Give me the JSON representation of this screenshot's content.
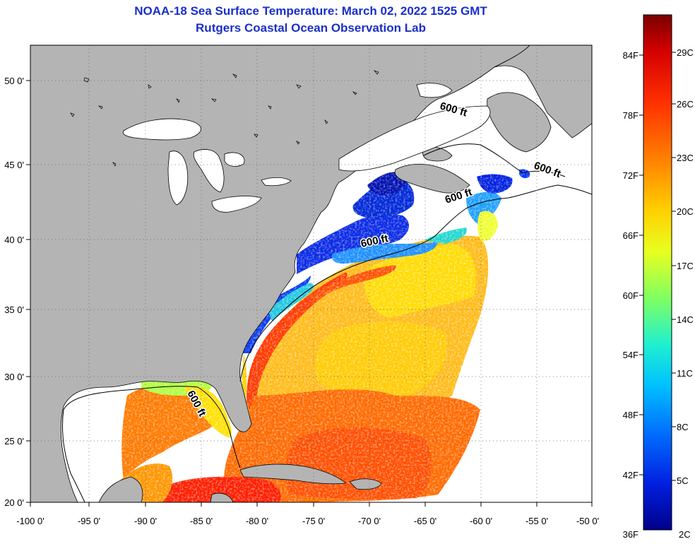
{
  "title": "NOAA-18 Sea Surface Temperature:  March 02, 2022 1525 GMT",
  "subtitle": "Rutgers Coastal Ocean Observation Lab",
  "x_ticks": [
    "-100 0'",
    "-95 0'",
    "-90 0'",
    "-85 0'",
    "-80 0'",
    "-75 0'",
    "-70 0'",
    "-65 0'",
    "-60 0'",
    "-55 0'",
    "-50 0'"
  ],
  "y_ticks": [
    "20 0'",
    "25 0'",
    "30 0'",
    "35 0'",
    "40 0'",
    "45 0'",
    "50 0'"
  ],
  "contour_labels": [
    "600 ft",
    "600 ft",
    "600 ft",
    "600 ft",
    "600 ft"
  ],
  "colorbar": {
    "f_labels": [
      "84F",
      "78F",
      "72F",
      "66F",
      "60F",
      "54F",
      "48F",
      "42F",
      "36F"
    ],
    "c_labels": [
      "29C",
      "26C",
      "23C",
      "20C",
      "17C",
      "14C",
      "11C",
      "8C",
      "5C",
      "2C"
    ],
    "colors_top_to_bottom": [
      "#7a0000",
      "#d40000",
      "#ff3000",
      "#ff8000",
      "#ffd000",
      "#e8ff20",
      "#80ff60",
      "#20f0d0",
      "#00c0ff",
      "#0070ff",
      "#0020e0",
      "#00008a"
    ]
  },
  "colors": {
    "land": "#b4b4b4",
    "title": "#1a2fc8",
    "coast": "#000000"
  }
}
